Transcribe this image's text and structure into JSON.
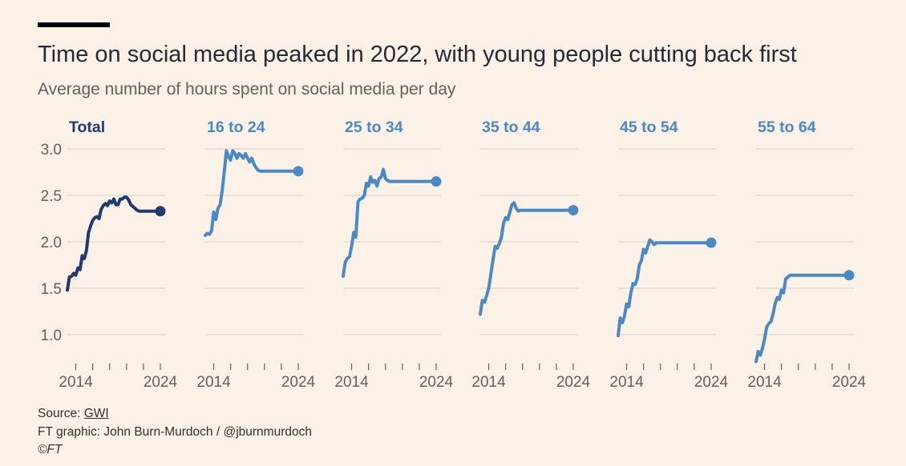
{
  "header": {
    "title": "Time on social media peaked in 2022, with young people cutting back first",
    "subtitle": "Average number of hours spent on social media per day"
  },
  "footer": {
    "source_prefix": "Source: ",
    "source_link": "GWI",
    "credit": "FT graphic: John Burn-Murdoch / @jburnmurdoch",
    "copyright": "©FT"
  },
  "colors": {
    "total": "#1e3a6e",
    "age": "#4a8ac4",
    "grid": "#e6d9ce",
    "tick_text": "#66605c",
    "background": "#fcf1e6"
  },
  "chart_data": {
    "type": "line",
    "small_multiples": true,
    "x_tick_labels": [
      "2014",
      "2024"
    ],
    "ylim": [
      0.75,
      3.0
    ],
    "y_ticks": [
      1.0,
      1.5,
      2.0,
      2.5,
      3.0
    ],
    "y_tick_labels": [
      "1.0",
      "1.5",
      "2.0",
      "2.5",
      "3.0"
    ],
    "grid": true,
    "series": [
      {
        "name": "Total",
        "color_key": "total",
        "x": [
          2013.0,
          2013.25,
          2013.5,
          2013.75,
          2014.0,
          2014.25,
          2014.5,
          2014.75,
          2015.0,
          2015.25,
          2015.5,
          2015.75,
          2016.0,
          2016.25,
          2016.5,
          2016.75,
          2017.0,
          2017.25,
          2017.5,
          2017.75,
          2018.0,
          2018.25,
          2018.5,
          2018.75,
          2019.0,
          2019.25,
          2019.5,
          2019.75,
          2020.0,
          2020.25,
          2020.5,
          2020.75,
          2021.0,
          2021.25,
          2021.5,
          2021.75,
          2022.0,
          2022.25,
          2022.5,
          2022.75,
          2023.0,
          2023.25,
          2023.5,
          2023.75,
          2024.0
        ],
        "values": [
          1.48,
          1.62,
          1.63,
          1.66,
          1.64,
          1.72,
          1.7,
          1.85,
          1.82,
          1.9,
          2.1,
          2.17,
          2.23,
          2.26,
          2.27,
          2.25,
          2.35,
          2.39,
          2.41,
          2.39,
          2.44,
          2.42,
          2.46,
          2.4,
          2.4,
          2.46,
          2.46,
          2.48,
          2.48,
          2.45,
          2.4,
          2.38,
          2.36,
          2.34,
          2.33,
          2.33,
          2.33,
          2.33,
          2.33,
          2.33,
          2.33,
          2.33,
          2.33,
          2.33,
          2.33
        ]
      },
      {
        "name": "16 to 24",
        "color_key": "age",
        "x": [
          2013.0,
          2013.25,
          2013.5,
          2013.75,
          2014.0,
          2014.25,
          2014.5,
          2014.75,
          2015.0,
          2015.25,
          2015.5,
          2015.75,
          2016.0,
          2016.25,
          2016.5,
          2016.75,
          2017.0,
          2017.25,
          2017.5,
          2017.75,
          2018.0,
          2018.25,
          2018.5,
          2018.75,
          2019.0,
          2019.25,
          2019.5,
          2019.75,
          2020.0,
          2020.25,
          2020.5,
          2020.75,
          2021.0,
          2021.25,
          2021.5,
          2021.75,
          2022.0,
          2022.25,
          2022.5,
          2022.75,
          2023.0,
          2023.25,
          2023.5,
          2023.75,
          2024.0
        ],
        "values": [
          2.07,
          2.09,
          2.08,
          2.12,
          2.32,
          2.24,
          2.36,
          2.4,
          2.55,
          2.75,
          2.98,
          2.92,
          2.88,
          2.98,
          2.95,
          2.9,
          2.95,
          2.93,
          2.9,
          2.95,
          2.9,
          2.86,
          2.9,
          2.84,
          2.8,
          2.77,
          2.76,
          2.76,
          2.76,
          2.76,
          2.76,
          2.76,
          2.76,
          2.76,
          2.76,
          2.76,
          2.76,
          2.76,
          2.76,
          2.76,
          2.76,
          2.76,
          2.76,
          2.76,
          2.76
        ]
      },
      {
        "name": "25 to 34",
        "color_key": "age",
        "x": [
          2013.0,
          2013.25,
          2013.5,
          2013.75,
          2014.0,
          2014.25,
          2014.5,
          2014.75,
          2015.0,
          2015.25,
          2015.5,
          2015.75,
          2016.0,
          2016.25,
          2016.5,
          2016.75,
          2017.0,
          2017.25,
          2017.5,
          2017.75,
          2018.0,
          2018.25,
          2018.5,
          2018.75,
          2019.0,
          2019.25,
          2019.5,
          2019.75,
          2020.0,
          2020.25,
          2020.5,
          2020.75,
          2021.0,
          2021.25,
          2021.5,
          2021.75,
          2022.0,
          2022.25,
          2022.5,
          2022.75,
          2023.0,
          2023.25,
          2023.5,
          2023.75,
          2024.0
        ],
        "values": [
          1.63,
          1.78,
          1.82,
          1.84,
          1.95,
          2.1,
          2.05,
          2.43,
          2.46,
          2.47,
          2.5,
          2.63,
          2.6,
          2.7,
          2.64,
          2.66,
          2.6,
          2.68,
          2.7,
          2.78,
          2.68,
          2.66,
          2.65,
          2.65,
          2.65,
          2.65,
          2.65,
          2.65,
          2.65,
          2.65,
          2.65,
          2.65,
          2.65,
          2.65,
          2.65,
          2.65,
          2.65,
          2.65,
          2.65,
          2.65,
          2.65,
          2.65,
          2.65,
          2.65,
          2.65
        ]
      },
      {
        "name": "35 to 44",
        "color_key": "age",
        "x": [
          2013.0,
          2013.25,
          2013.5,
          2013.75,
          2014.0,
          2014.25,
          2014.5,
          2014.75,
          2015.0,
          2015.25,
          2015.5,
          2015.75,
          2016.0,
          2016.25,
          2016.5,
          2016.75,
          2017.0,
          2017.25,
          2017.5,
          2017.75,
          2018.0,
          2018.25,
          2018.5,
          2018.75,
          2019.0,
          2019.25,
          2019.5,
          2019.75,
          2020.0,
          2020.25,
          2020.5,
          2020.75,
          2021.0,
          2021.25,
          2021.5,
          2021.75,
          2022.0,
          2022.25,
          2022.5,
          2022.75,
          2023.0,
          2023.25,
          2023.5,
          2023.75,
          2024.0
        ],
        "values": [
          1.22,
          1.37,
          1.35,
          1.42,
          1.5,
          1.65,
          1.8,
          1.95,
          1.93,
          1.98,
          2.05,
          2.2,
          2.26,
          2.24,
          2.32,
          2.4,
          2.42,
          2.36,
          2.33,
          2.34,
          2.34,
          2.34,
          2.34,
          2.34,
          2.34,
          2.34,
          2.34,
          2.34,
          2.34,
          2.34,
          2.34,
          2.34,
          2.34,
          2.34,
          2.34,
          2.34,
          2.34,
          2.34,
          2.34,
          2.34,
          2.34,
          2.34,
          2.34,
          2.34,
          2.34
        ]
      },
      {
        "name": "45 to 54",
        "color_key": "age",
        "x": [
          2013.0,
          2013.25,
          2013.5,
          2013.75,
          2014.0,
          2014.25,
          2014.5,
          2014.75,
          2015.0,
          2015.25,
          2015.5,
          2015.75,
          2016.0,
          2016.25,
          2016.5,
          2016.75,
          2017.0,
          2017.25,
          2017.5,
          2017.75,
          2018.0,
          2018.25,
          2018.5,
          2018.75,
          2019.0,
          2019.25,
          2019.5,
          2019.75,
          2020.0,
          2020.25,
          2020.5,
          2020.75,
          2021.0,
          2021.25,
          2021.5,
          2021.75,
          2022.0,
          2022.25,
          2022.5,
          2022.75,
          2023.0,
          2023.25,
          2023.5,
          2023.75,
          2024.0
        ],
        "values": [
          0.99,
          1.18,
          1.13,
          1.2,
          1.33,
          1.3,
          1.45,
          1.55,
          1.54,
          1.6,
          1.75,
          1.8,
          1.92,
          1.88,
          1.95,
          2.02,
          2.0,
          1.97,
          1.99,
          1.99,
          1.99,
          1.99,
          1.99,
          1.99,
          1.99,
          1.99,
          1.99,
          1.99,
          1.99,
          1.99,
          1.99,
          1.99,
          1.99,
          1.99,
          1.99,
          1.99,
          1.99,
          1.99,
          1.99,
          1.99,
          1.99,
          1.99,
          1.99,
          1.99,
          1.99
        ]
      },
      {
        "name": "55 to 64",
        "color_key": "age",
        "x": [
          2013.0,
          2013.25,
          2013.5,
          2013.75,
          2014.0,
          2014.25,
          2014.5,
          2014.75,
          2015.0,
          2015.25,
          2015.5,
          2015.75,
          2016.0,
          2016.25,
          2016.5,
          2016.75,
          2017.0,
          2017.25,
          2017.5,
          2017.75,
          2018.0,
          2018.25,
          2018.5,
          2018.75,
          2019.0,
          2019.25,
          2019.5,
          2019.75,
          2020.0,
          2020.25,
          2020.5,
          2020.75,
          2021.0,
          2021.25,
          2021.5,
          2021.75,
          2022.0,
          2022.25,
          2022.5,
          2022.75,
          2023.0,
          2023.25,
          2023.5,
          2023.75,
          2024.0
        ],
        "values": [
          0.71,
          0.82,
          0.78,
          0.85,
          0.95,
          1.08,
          1.12,
          1.14,
          1.22,
          1.33,
          1.4,
          1.38,
          1.48,
          1.45,
          1.6,
          1.62,
          1.64,
          1.64,
          1.64,
          1.64,
          1.64,
          1.64,
          1.64,
          1.64,
          1.64,
          1.64,
          1.64,
          1.64,
          1.64,
          1.64,
          1.64,
          1.64,
          1.64,
          1.64,
          1.64,
          1.64,
          1.64,
          1.64,
          1.64,
          1.64,
          1.64,
          1.64,
          1.64,
          1.64,
          1.64
        ]
      }
    ]
  }
}
